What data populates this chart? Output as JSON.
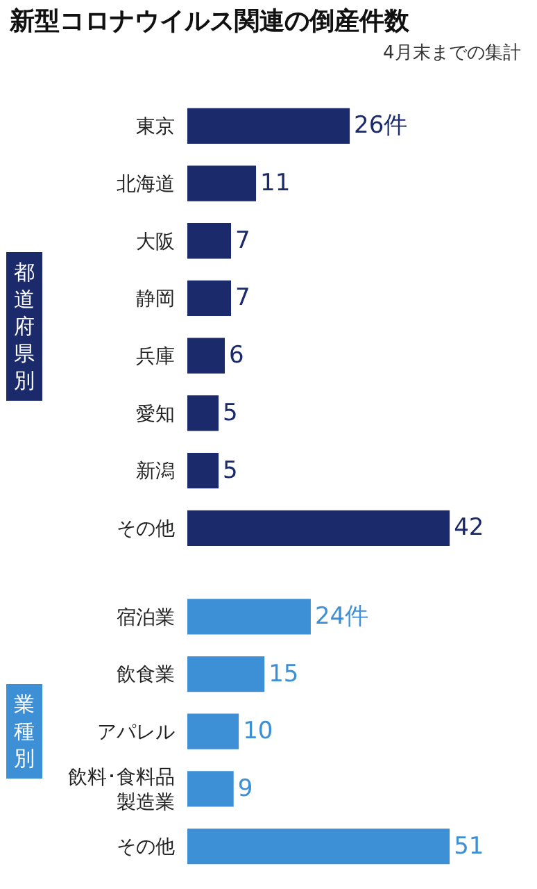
{
  "chart_data": [
    {
      "type": "bar",
      "orientation": "horizontal",
      "title": "新型コロナウイルス関連の倒産件数",
      "subtitle": "4月末までの集計",
      "ylabel": "都道府県別",
      "categories": [
        "東京",
        "北海道",
        "大阪",
        "静岡",
        "兵庫",
        "愛知",
        "新潟",
        "その他"
      ],
      "values": [
        26,
        11,
        7,
        7,
        6,
        5,
        5,
        42
      ],
      "value_labels": [
        "26件",
        "11",
        "7",
        "7",
        "6",
        "5",
        "5",
        "42"
      ],
      "color": "#1b2a6b",
      "tick_labels": "y"
    },
    {
      "type": "bar",
      "orientation": "horizontal",
      "ylabel": "業種別",
      "categories": [
        "宿泊業",
        "飲食業",
        "アパレル",
        "飲料･食料品製造業",
        "その他"
      ],
      "values": [
        24,
        15,
        10,
        9,
        51
      ],
      "value_labels": [
        "24件",
        "15",
        "10",
        "9",
        "51"
      ],
      "color": "#3d8fd6",
      "tick_labels": "y"
    }
  ]
}
